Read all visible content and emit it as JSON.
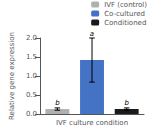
{
  "chart_data": {
    "type": "bar",
    "xlabel": "IVF culture condition",
    "ylabel": "Relative gene expression",
    "categories": [
      "IVF (control)",
      "Co-cultured",
      "Conditioned"
    ],
    "values": [
      0.13,
      1.42,
      0.13
    ],
    "errors": [
      0.03,
      0.58,
      0.03
    ],
    "annotations": [
      "b",
      "a",
      "b"
    ],
    "colors": [
      "#b0b0b0",
      "#4472c4",
      "#1a1a1a"
    ],
    "ylim": [
      0,
      2.0
    ],
    "yticks": [
      {
        "value": 0.0,
        "label": "0.0"
      },
      0.5,
      {
        "value": 1.0,
        "label": "1.0"
      },
      1.5,
      {
        "value": 2.0,
        "label": "2.0"
      }
    ],
    "legend": "upper right",
    "grid": false,
    "tick_labels": "y"
  }
}
